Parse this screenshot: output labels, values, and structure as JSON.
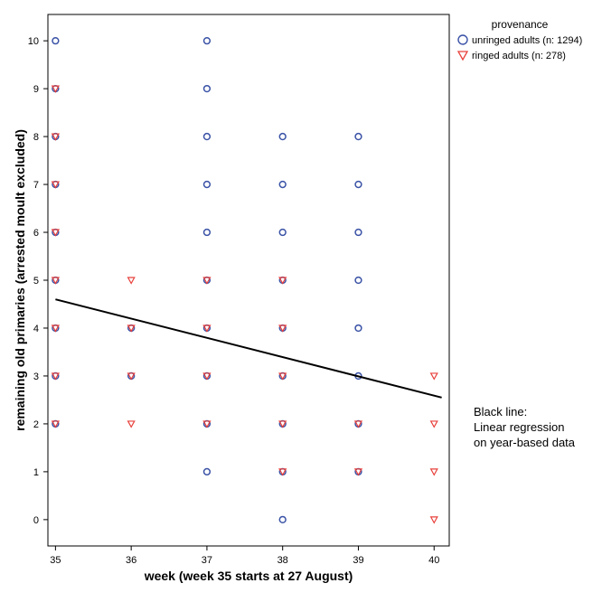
{
  "chart_data": {
    "type": "scatter",
    "xlabel": "week (week 35 starts at 27 August)",
    "ylabel": "remaining old primaries (arrested moult excluded)",
    "xlim": [
      34.9,
      40.2
    ],
    "ylim": [
      -0.55,
      10.55
    ],
    "x_ticks": [
      "35",
      "36",
      "37",
      "38",
      "39",
      "40"
    ],
    "y_ticks": [
      "0",
      "1",
      "2",
      "3",
      "4",
      "5",
      "6",
      "7",
      "8",
      "9",
      "10"
    ],
    "grid": false,
    "legend": {
      "title": "provenance",
      "placement": "top-right outside",
      "entries": [
        "unringed adults (n: 1294)",
        "ringed adults (n: 278)"
      ]
    },
    "series": [
      {
        "name": "unringed adults (n: 1294)",
        "marker": "circle",
        "color": "#3a52a6",
        "points": [
          [
            35,
            2
          ],
          [
            35,
            3
          ],
          [
            35,
            4
          ],
          [
            35,
            5
          ],
          [
            35,
            6
          ],
          [
            35,
            7
          ],
          [
            35,
            8
          ],
          [
            35,
            9
          ],
          [
            35,
            10
          ],
          [
            36,
            3
          ],
          [
            36,
            4
          ],
          [
            37,
            1
          ],
          [
            37,
            2
          ],
          [
            37,
            3
          ],
          [
            37,
            4
          ],
          [
            37,
            5
          ],
          [
            37,
            6
          ],
          [
            37,
            7
          ],
          [
            37,
            8
          ],
          [
            37,
            9
          ],
          [
            37,
            10
          ],
          [
            38,
            0
          ],
          [
            38,
            1
          ],
          [
            38,
            2
          ],
          [
            38,
            3
          ],
          [
            38,
            4
          ],
          [
            38,
            5
          ],
          [
            38,
            6
          ],
          [
            38,
            7
          ],
          [
            38,
            8
          ],
          [
            39,
            1
          ],
          [
            39,
            2
          ],
          [
            39,
            3
          ],
          [
            39,
            4
          ],
          [
            39,
            5
          ],
          [
            39,
            6
          ],
          [
            39,
            7
          ],
          [
            39,
            8
          ]
        ]
      },
      {
        "name": "ringed adults (n: 278)",
        "marker": "triangle-down",
        "color": "#e8413c",
        "points": [
          [
            35,
            2
          ],
          [
            35,
            3
          ],
          [
            35,
            4
          ],
          [
            35,
            5
          ],
          [
            35,
            6
          ],
          [
            35,
            7
          ],
          [
            35,
            8
          ],
          [
            35,
            9
          ],
          [
            36,
            2
          ],
          [
            36,
            3
          ],
          [
            36,
            4
          ],
          [
            36,
            5
          ],
          [
            37,
            2
          ],
          [
            37,
            3
          ],
          [
            37,
            4
          ],
          [
            37,
            5
          ],
          [
            38,
            1
          ],
          [
            38,
            2
          ],
          [
            38,
            3
          ],
          [
            38,
            4
          ],
          [
            38,
            5
          ],
          [
            39,
            1
          ],
          [
            39,
            2
          ],
          [
            40,
            0
          ],
          [
            40,
            1
          ],
          [
            40,
            2
          ],
          [
            40,
            3
          ]
        ]
      }
    ],
    "regression_line": {
      "color": "#000000",
      "points": [
        [
          35,
          4.6
        ],
        [
          40.1,
          2.55
        ]
      ]
    },
    "annotation": [
      "Black line:",
      "Linear regression",
      "on year-based data"
    ]
  }
}
